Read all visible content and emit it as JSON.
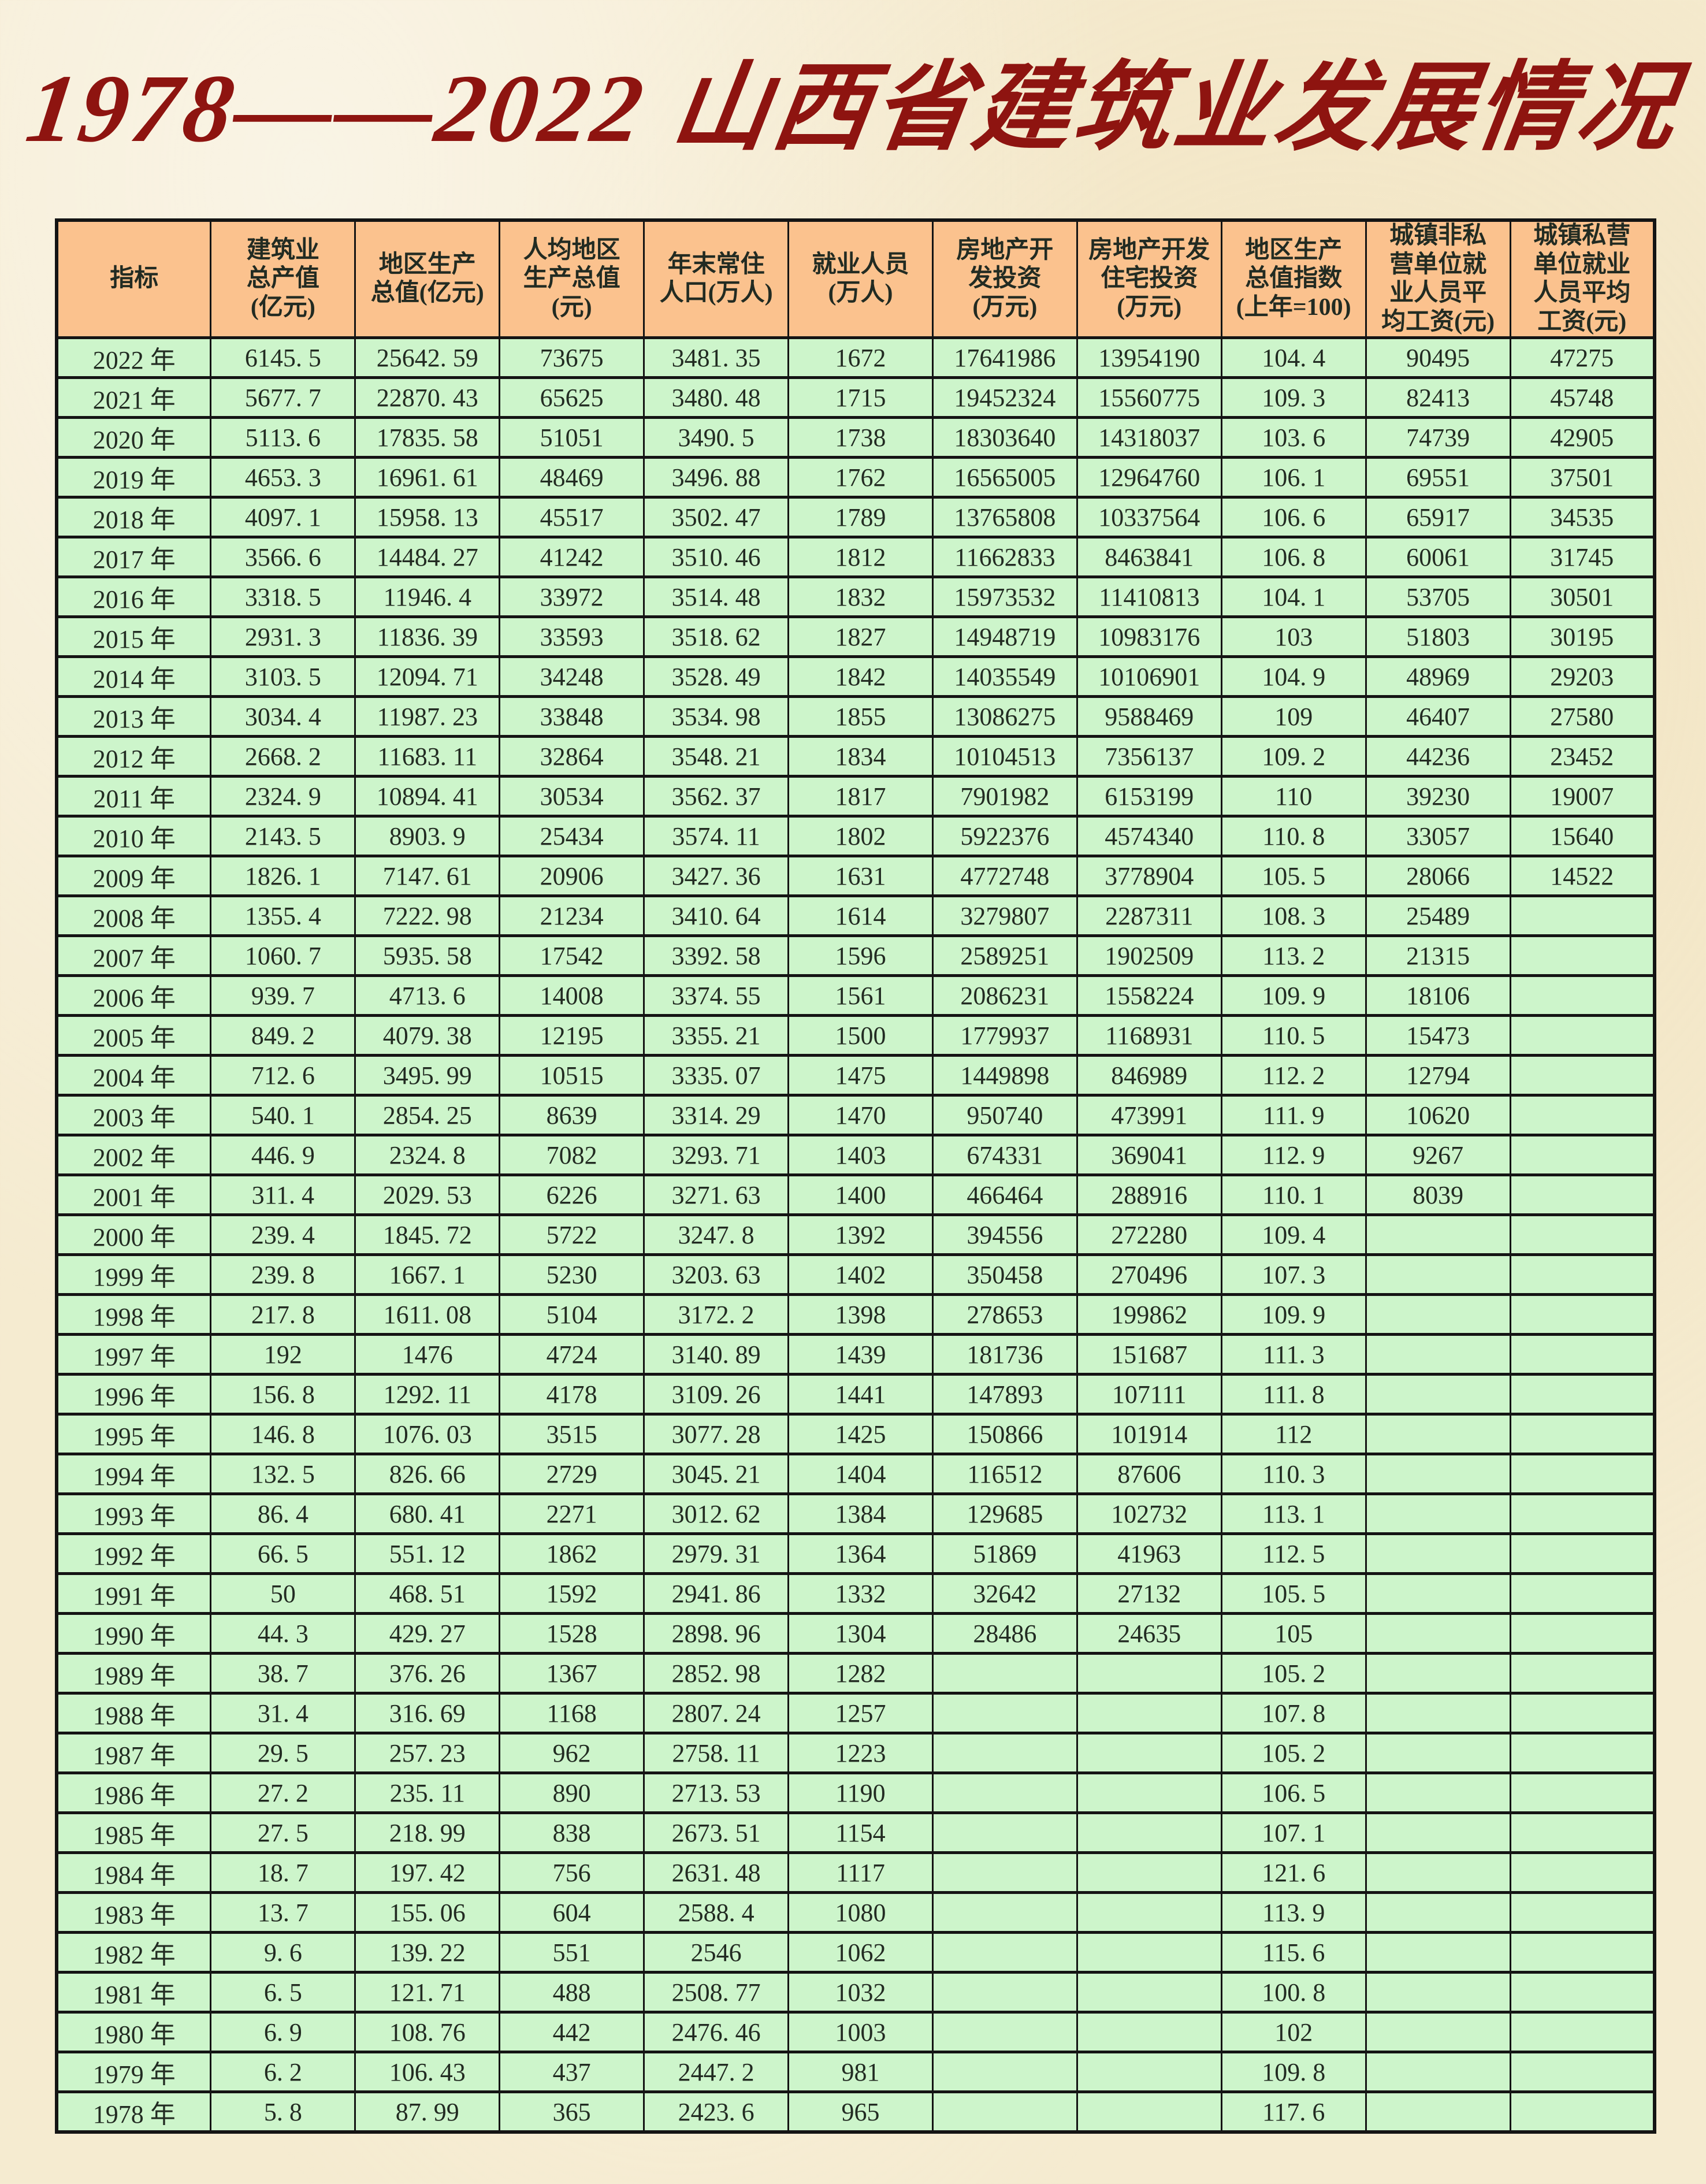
{
  "title": "1978——2022 山西省建筑业发展情况",
  "colors": {
    "page_bg": "#f5ebd0",
    "title_color": "#8e1410",
    "header_bg": "#fbc28e",
    "cell_bg": "#cdf5cb",
    "border_color": "#141414",
    "text_color": "#222b22"
  },
  "table": {
    "header": [
      "指标",
      "建筑业\n总产值\n(亿元)",
      "地区生产\n总值(亿元)",
      "人均地区\n生产总值\n(元)",
      "年末常住\n人口(万人)",
      "就业人员\n(万人)",
      "房地产开\n发投资\n(万元)",
      "房地产开发\n住宅投资\n(万元)",
      "地区生产\n总值指数\n(上年=100)",
      "城镇非私\n营单位就\n业人员平\n均工资(元)",
      "城镇私营\n单位就业\n人员平均\n工资(元)"
    ],
    "rows": [
      [
        "2022 年",
        "6145. 5",
        "25642. 59",
        "73675",
        "3481. 35",
        "1672",
        "17641986",
        "13954190",
        "104. 4",
        "90495",
        "47275"
      ],
      [
        "2021 年",
        "5677. 7",
        "22870. 43",
        "65625",
        "3480. 48",
        "1715",
        "19452324",
        "15560775",
        "109. 3",
        "82413",
        "45748"
      ],
      [
        "2020 年",
        "5113. 6",
        "17835. 58",
        "51051",
        "3490. 5",
        "1738",
        "18303640",
        "14318037",
        "103. 6",
        "74739",
        "42905"
      ],
      [
        "2019 年",
        "4653. 3",
        "16961. 61",
        "48469",
        "3496. 88",
        "1762",
        "16565005",
        "12964760",
        "106. 1",
        "69551",
        "37501"
      ],
      [
        "2018 年",
        "4097. 1",
        "15958. 13",
        "45517",
        "3502. 47",
        "1789",
        "13765808",
        "10337564",
        "106. 6",
        "65917",
        "34535"
      ],
      [
        "2017 年",
        "3566. 6",
        "14484. 27",
        "41242",
        "3510. 46",
        "1812",
        "11662833",
        "8463841",
        "106. 8",
        "60061",
        "31745"
      ],
      [
        "2016 年",
        "3318. 5",
        "11946. 4",
        "33972",
        "3514. 48",
        "1832",
        "15973532",
        "11410813",
        "104. 1",
        "53705",
        "30501"
      ],
      [
        "2015 年",
        "2931. 3",
        "11836. 39",
        "33593",
        "3518. 62",
        "1827",
        "14948719",
        "10983176",
        "103",
        "51803",
        "30195"
      ],
      [
        "2014 年",
        "3103. 5",
        "12094. 71",
        "34248",
        "3528. 49",
        "1842",
        "14035549",
        "10106901",
        "104. 9",
        "48969",
        "29203"
      ],
      [
        "2013 年",
        "3034. 4",
        "11987. 23",
        "33848",
        "3534. 98",
        "1855",
        "13086275",
        "9588469",
        "109",
        "46407",
        "27580"
      ],
      [
        "2012 年",
        "2668. 2",
        "11683. 11",
        "32864",
        "3548. 21",
        "1834",
        "10104513",
        "7356137",
        "109. 2",
        "44236",
        "23452"
      ],
      [
        "2011 年",
        "2324. 9",
        "10894. 41",
        "30534",
        "3562. 37",
        "1817",
        "7901982",
        "6153199",
        "110",
        "39230",
        "19007"
      ],
      [
        "2010 年",
        "2143. 5",
        "8903. 9",
        "25434",
        "3574. 11",
        "1802",
        "5922376",
        "4574340",
        "110. 8",
        "33057",
        "15640"
      ],
      [
        "2009 年",
        "1826. 1",
        "7147. 61",
        "20906",
        "3427. 36",
        "1631",
        "4772748",
        "3778904",
        "105. 5",
        "28066",
        "14522"
      ],
      [
        "2008 年",
        "1355. 4",
        "7222. 98",
        "21234",
        "3410. 64",
        "1614",
        "3279807",
        "2287311",
        "108. 3",
        "25489",
        ""
      ],
      [
        "2007 年",
        "1060. 7",
        "5935. 58",
        "17542",
        "3392. 58",
        "1596",
        "2589251",
        "1902509",
        "113. 2",
        "21315",
        ""
      ],
      [
        "2006 年",
        "939. 7",
        "4713. 6",
        "14008",
        "3374. 55",
        "1561",
        "2086231",
        "1558224",
        "109. 9",
        "18106",
        ""
      ],
      [
        "2005 年",
        "849. 2",
        "4079. 38",
        "12195",
        "3355. 21",
        "1500",
        "1779937",
        "1168931",
        "110. 5",
        "15473",
        ""
      ],
      [
        "2004 年",
        "712. 6",
        "3495. 99",
        "10515",
        "3335. 07",
        "1475",
        "1449898",
        "846989",
        "112. 2",
        "12794",
        ""
      ],
      [
        "2003 年",
        "540. 1",
        "2854. 25",
        "8639",
        "3314. 29",
        "1470",
        "950740",
        "473991",
        "111. 9",
        "10620",
        ""
      ],
      [
        "2002 年",
        "446. 9",
        "2324. 8",
        "7082",
        "3293. 71",
        "1403",
        "674331",
        "369041",
        "112. 9",
        "9267",
        ""
      ],
      [
        "2001 年",
        "311. 4",
        "2029. 53",
        "6226",
        "3271. 63",
        "1400",
        "466464",
        "288916",
        "110. 1",
        "8039",
        ""
      ],
      [
        "2000 年",
        "239. 4",
        "1845. 72",
        "5722",
        "3247. 8",
        "1392",
        "394556",
        "272280",
        "109. 4",
        "",
        ""
      ],
      [
        "1999 年",
        "239. 8",
        "1667. 1",
        "5230",
        "3203. 63",
        "1402",
        "350458",
        "270496",
        "107. 3",
        "",
        ""
      ],
      [
        "1998 年",
        "217. 8",
        "1611. 08",
        "5104",
        "3172. 2",
        "1398",
        "278653",
        "199862",
        "109. 9",
        "",
        ""
      ],
      [
        "1997 年",
        "192",
        "1476",
        "4724",
        "3140. 89",
        "1439",
        "181736",
        "151687",
        "111. 3",
        "",
        ""
      ],
      [
        "1996 年",
        "156. 8",
        "1292. 11",
        "4178",
        "3109. 26",
        "1441",
        "147893",
        "107111",
        "111. 8",
        "",
        ""
      ],
      [
        "1995 年",
        "146. 8",
        "1076. 03",
        "3515",
        "3077. 28",
        "1425",
        "150866",
        "101914",
        "112",
        "",
        ""
      ],
      [
        "1994 年",
        "132. 5",
        "826. 66",
        "2729",
        "3045. 21",
        "1404",
        "116512",
        "87606",
        "110. 3",
        "",
        ""
      ],
      [
        "1993 年",
        "86. 4",
        "680. 41",
        "2271",
        "3012. 62",
        "1384",
        "129685",
        "102732",
        "113. 1",
        "",
        ""
      ],
      [
        "1992 年",
        "66. 5",
        "551. 12",
        "1862",
        "2979. 31",
        "1364",
        "51869",
        "41963",
        "112. 5",
        "",
        ""
      ],
      [
        "1991 年",
        "50",
        "468. 51",
        "1592",
        "2941. 86",
        "1332",
        "32642",
        "27132",
        "105. 5",
        "",
        ""
      ],
      [
        "1990 年",
        "44. 3",
        "429. 27",
        "1528",
        "2898. 96",
        "1304",
        "28486",
        "24635",
        "105",
        "",
        ""
      ],
      [
        "1989 年",
        "38. 7",
        "376. 26",
        "1367",
        "2852. 98",
        "1282",
        "",
        "",
        "105. 2",
        "",
        ""
      ],
      [
        "1988 年",
        "31. 4",
        "316. 69",
        "1168",
        "2807. 24",
        "1257",
        "",
        "",
        "107. 8",
        "",
        ""
      ],
      [
        "1987 年",
        "29. 5",
        "257. 23",
        "962",
        "2758. 11",
        "1223",
        "",
        "",
        "105. 2",
        "",
        ""
      ],
      [
        "1986 年",
        "27. 2",
        "235. 11",
        "890",
        "2713. 53",
        "1190",
        "",
        "",
        "106. 5",
        "",
        ""
      ],
      [
        "1985 年",
        "27. 5",
        "218. 99",
        "838",
        "2673. 51",
        "1154",
        "",
        "",
        "107. 1",
        "",
        ""
      ],
      [
        "1984 年",
        "18. 7",
        "197. 42",
        "756",
        "2631. 48",
        "1117",
        "",
        "",
        "121. 6",
        "",
        ""
      ],
      [
        "1983 年",
        "13. 7",
        "155. 06",
        "604",
        "2588. 4",
        "1080",
        "",
        "",
        "113. 9",
        "",
        ""
      ],
      [
        "1982 年",
        "9. 6",
        "139. 22",
        "551",
        "2546",
        "1062",
        "",
        "",
        "115. 6",
        "",
        ""
      ],
      [
        "1981 年",
        "6. 5",
        "121. 71",
        "488",
        "2508. 77",
        "1032",
        "",
        "",
        "100. 8",
        "",
        ""
      ],
      [
        "1980 年",
        "6. 9",
        "108. 76",
        "442",
        "2476. 46",
        "1003",
        "",
        "",
        "102",
        "",
        ""
      ],
      [
        "1979 年",
        "6. 2",
        "106. 43",
        "437",
        "2447. 2",
        "981",
        "",
        "",
        "109. 8",
        "",
        ""
      ],
      [
        "1978 年",
        "5. 8",
        "87. 99",
        "365",
        "2423. 6",
        "965",
        "",
        "",
        "117. 6",
        "",
        ""
      ]
    ]
  }
}
